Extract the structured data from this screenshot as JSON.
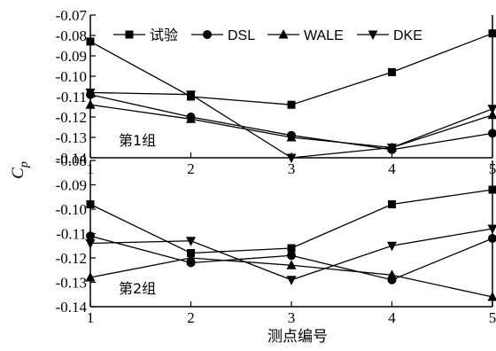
{
  "chart_data": {
    "type": "line",
    "ylabel": "Cp",
    "ylabel_main": "C",
    "ylabel_sub": "p",
    "xlabel": "测点编号",
    "categories": [
      "1",
      "2",
      "3",
      "4",
      "5"
    ],
    "legend": {
      "placement": "top-right",
      "entries": [
        {
          "name": "试验",
          "marker": "square"
        },
        {
          "name": "DSL",
          "marker": "circle"
        },
        {
          "name": "WALE",
          "marker": "triangle-up"
        },
        {
          "name": "DKE",
          "marker": "triangle-down"
        }
      ]
    },
    "panels": [
      {
        "label": "第1组",
        "ylim": [
          -0.14,
          -0.07
        ],
        "yticks": [
          "-0.07",
          "-0.08",
          "-0.09",
          "-0.10",
          "-0.11",
          "-0.12",
          "-0.13",
          "-0.14"
        ],
        "series": [
          {
            "name": "试验",
            "values": [
              -0.083,
              -0.11,
              -0.114,
              -0.098,
              -0.079
            ]
          },
          {
            "name": "DSL",
            "values": [
              -0.109,
              -0.12,
              -0.129,
              -0.136,
              -0.128
            ]
          },
          {
            "name": "WALE",
            "values": [
              -0.114,
              -0.121,
              -0.13,
              -0.135,
              -0.119
            ]
          },
          {
            "name": "DKE",
            "values": [
              -0.108,
              -0.109,
              -0.14,
              -0.135,
              -0.116
            ]
          }
        ]
      },
      {
        "label": "第2组",
        "ylim": [
          -0.14,
          -0.08
        ],
        "yticks": [
          "-0.08",
          "-0.09",
          "-0.10",
          "-0.11",
          "-0.12",
          "-0.13",
          "-0.14"
        ],
        "series": [
          {
            "name": "试验",
            "values": [
              -0.098,
              -0.118,
              -0.116,
              -0.098,
              -0.092
            ]
          },
          {
            "name": "DSL",
            "values": [
              -0.111,
              -0.122,
              -0.119,
              -0.129,
              -0.112
            ]
          },
          {
            "name": "WALE",
            "values": [
              -0.128,
              -0.12,
              -0.123,
              -0.127,
              -0.136
            ]
          },
          {
            "name": "DKE",
            "values": [
              -0.114,
              -0.113,
              -0.129,
              -0.115,
              -0.108
            ]
          }
        ]
      }
    ]
  }
}
